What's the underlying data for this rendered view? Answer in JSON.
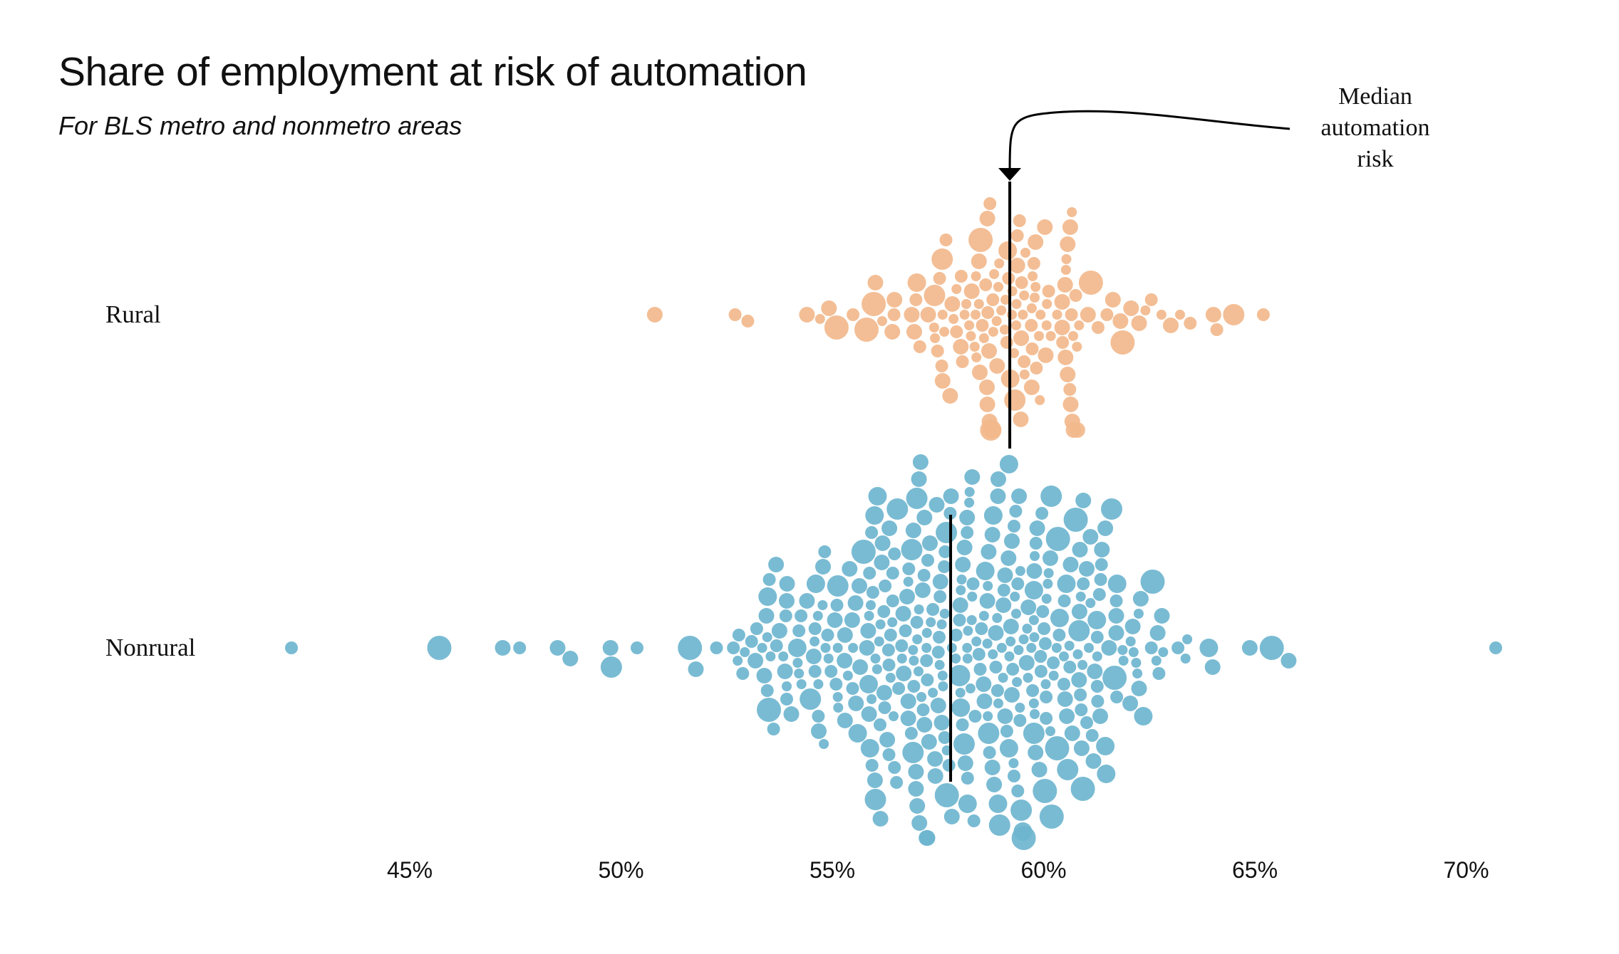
{
  "chart_data": {
    "type": "scatter",
    "subtype": "beeswarm",
    "title": "Share of employment at risk of automation",
    "subtitle": "For BLS metro and nonmetro areas",
    "xlabel": "",
    "ylabel": "",
    "xlim": [
      41,
      72
    ],
    "x_ticks": [
      45,
      50,
      55,
      60,
      65,
      70
    ],
    "x_tick_labels": [
      "45%",
      "50%",
      "55%",
      "60%",
      "65%",
      "70%"
    ],
    "grid": false,
    "legend": "none",
    "annotation": {
      "text_lines": [
        "Median",
        "automation",
        "risk"
      ]
    },
    "colors": {
      "Rural": "#f2b88c",
      "Nonrural": "#6eb5cf",
      "median_line": "#000000"
    },
    "series": [
      {
        "name": "Rural",
        "median": 59.2,
        "n": 160,
        "outliers": [
          50.8,
          52.7,
          53.0,
          54.4,
          55.1,
          64.1,
          64.5,
          65.2
        ],
        "range": [
          50.8,
          65.2
        ]
      },
      {
        "name": "Nonrural",
        "median": 57.8,
        "n": 420,
        "outliers": [
          42.2,
          45.7,
          47.2,
          47.6,
          48.5,
          48.8,
          65.4,
          65.8,
          70.7
        ],
        "range": [
          42.2,
          70.7
        ]
      }
    ]
  },
  "labels": {
    "rural": "Rural",
    "nonrural": "Nonrural"
  }
}
